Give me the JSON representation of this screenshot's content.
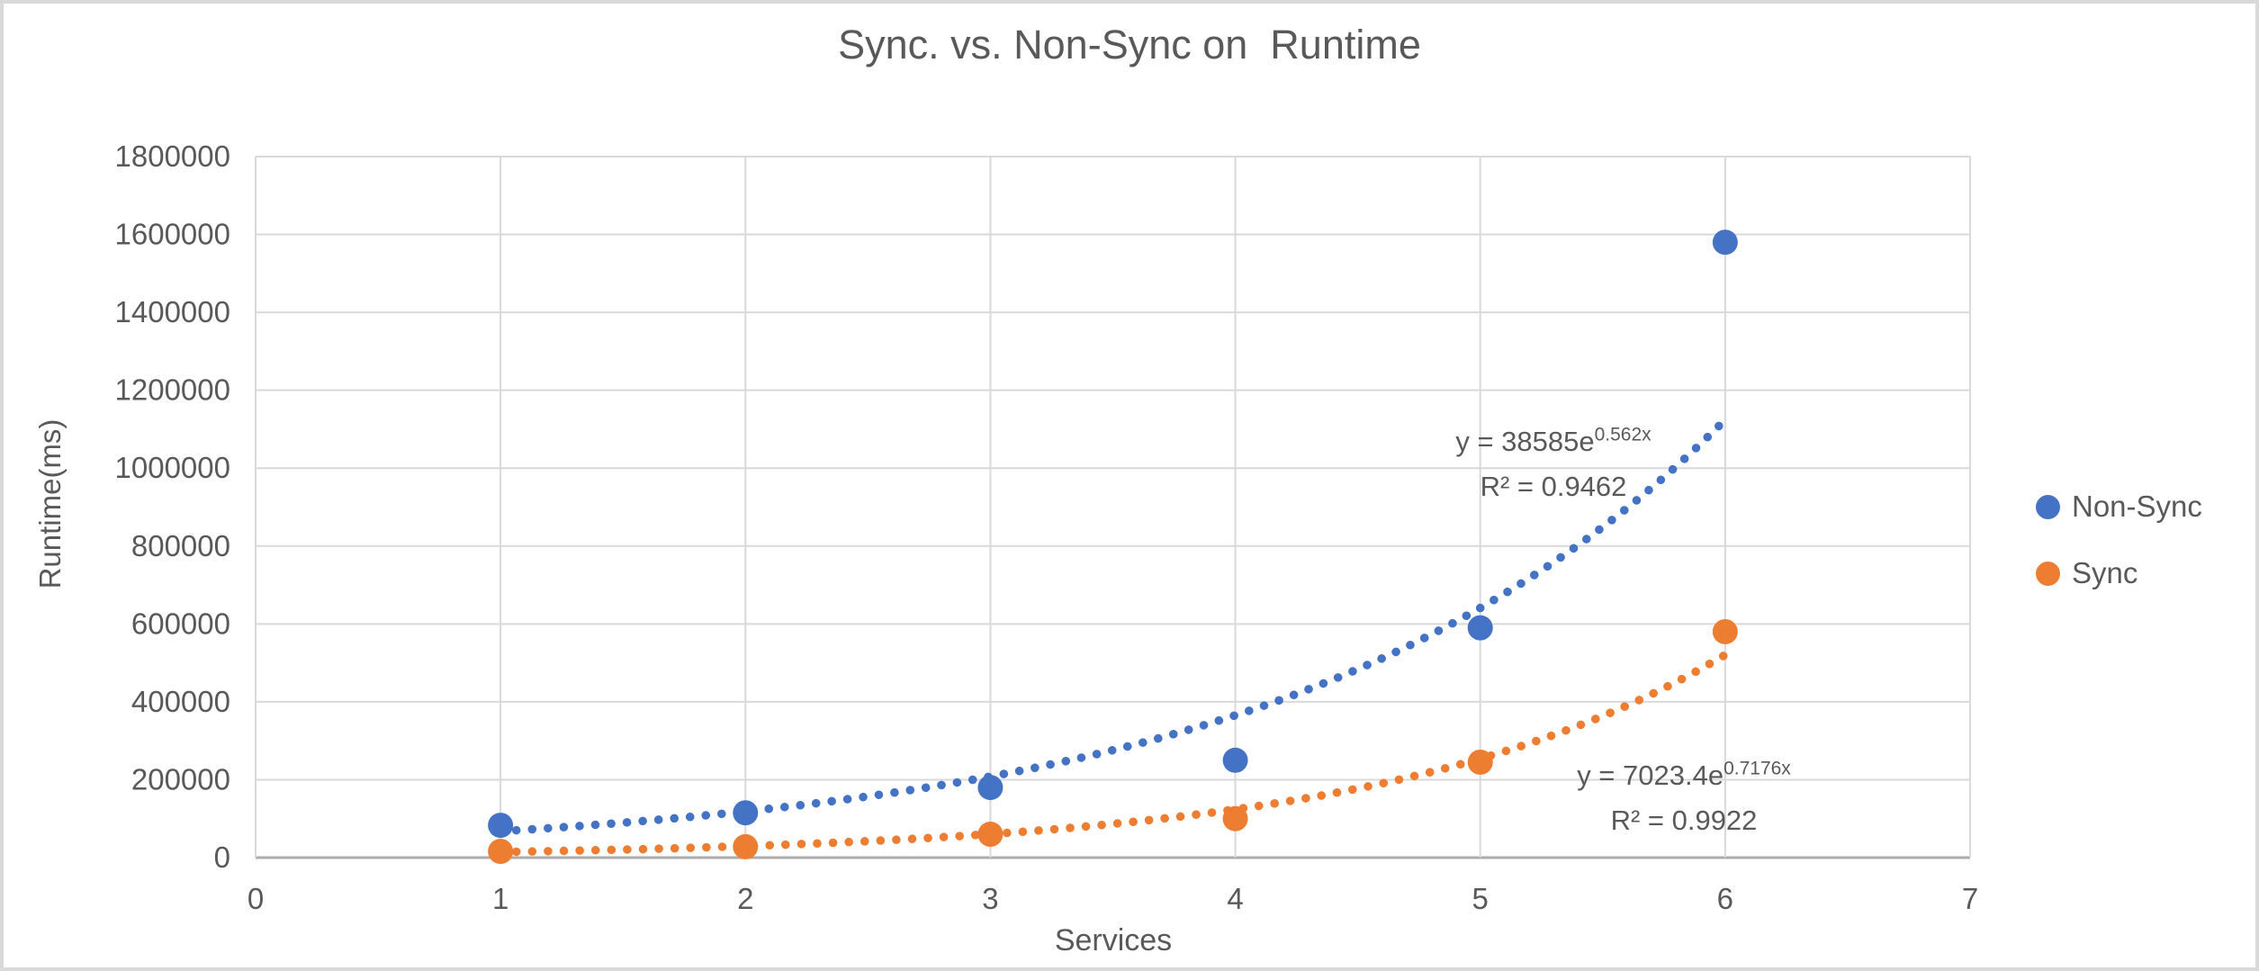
{
  "chart_data": {
    "type": "scatter",
    "title": "Sync. vs. Non-Sync on  Runtime",
    "xlabel": "Services",
    "ylabel": "Runtime(ms)",
    "xlim": [
      0,
      7
    ],
    "ylim": [
      0,
      1800000
    ],
    "x_ticks": [
      0,
      1,
      2,
      3,
      4,
      5,
      6,
      7
    ],
    "y_ticks": [
      0,
      200000,
      400000,
      600000,
      800000,
      1000000,
      1200000,
      1400000,
      1600000,
      1800000
    ],
    "grid": true,
    "legend_position": "right",
    "x": [
      1,
      2,
      3,
      4,
      5,
      6
    ],
    "series": [
      {
        "name": "Non-Sync",
        "color": "#4472C4",
        "values": [
          83000,
          115000,
          180000,
          250000,
          590000,
          1580000
        ],
        "trendline": {
          "type": "exponential",
          "coefficient": 38585,
          "rate": 0.562,
          "equation_base": "y = 38585e",
          "equation_exponent": "0.562x",
          "r_squared": "R² = 0.9462",
          "x_range": [
            1,
            6
          ]
        }
      },
      {
        "name": "Sync",
        "color": "#ED7D31",
        "values": [
          16000,
          28000,
          60000,
          100000,
          245000,
          580000
        ],
        "trendline": {
          "type": "exponential",
          "coefficient": 7023.4,
          "rate": 0.7176,
          "equation_base": "y = 7023.4e",
          "equation_exponent": "0.7176x",
          "r_squared": "R² = 0.9922",
          "x_range": [
            1,
            6
          ]
        }
      }
    ],
    "styles": {
      "text_color": "#595959",
      "gridline_color": "#D9D9D9",
      "axis_line_color": "#ABABAB",
      "background": "#FFFFFF",
      "frame_border": "#D9D9D9"
    }
  }
}
